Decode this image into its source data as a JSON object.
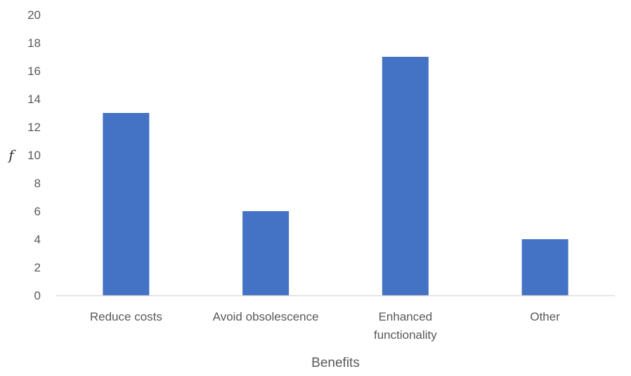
{
  "chart_data": {
    "type": "bar",
    "title": "",
    "xlabel": "Benefits",
    "ylabel": "f",
    "categories": [
      [
        "Reduce costs"
      ],
      [
        "Avoid obsolescence"
      ],
      [
        "Enhanced",
        "functionality"
      ],
      [
        "Other"
      ]
    ],
    "values": [
      13,
      6,
      17,
      4
    ],
    "ylim": [
      0,
      20
    ],
    "yticks": [
      "0",
      "2",
      "4",
      "6",
      "8",
      "10",
      "12",
      "14",
      "16",
      "18",
      "20"
    ],
    "grid": false,
    "legend": "none",
    "colors": {
      "bar": "#4472C4",
      "axis": "#D9D9D9",
      "text": "#595959"
    }
  }
}
